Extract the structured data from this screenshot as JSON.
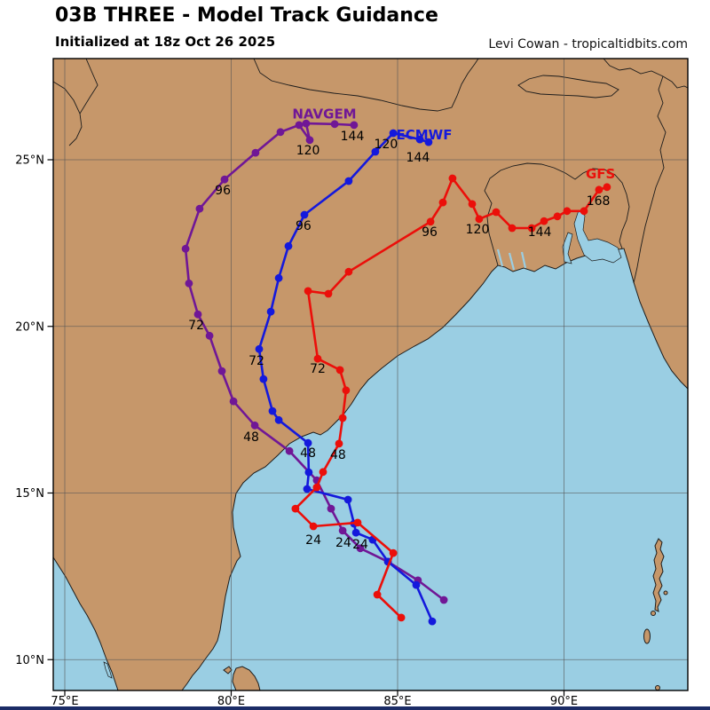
{
  "header": {
    "title": "03B THREE - Model Track Guidance",
    "subtitle": "Initialized at 18z Oct 26 2025",
    "credit": "Levi Cowan - tropicaltidbits.com"
  },
  "colors": {
    "land": "#c6976a",
    "ocean": "#9acee3",
    "coast_stroke": "#1c1c1c",
    "grid": "#555555",
    "navgem": "#701796",
    "ecmwf": "#1419dc",
    "gfs": "#eb0f0a",
    "hour_label": "#000000",
    "bottom_bar": "#1b2c66"
  },
  "chart_data": {
    "type": "line",
    "title": "03B THREE - Model Track Guidance",
    "subtitle": "Initialized at 18z Oct 26 2025",
    "axes": {
      "lon_ticks": [
        75,
        80,
        85,
        90
      ],
      "lat_ticks": [
        10,
        15,
        20,
        25
      ],
      "lon_suffix": "°E",
      "lat_suffix": "°N",
      "lon_range": [
        74.65,
        93.72
      ],
      "lat_range": [
        9.07,
        27.94
      ],
      "grid": true
    },
    "series": [
      {
        "name": "NAVGEM",
        "color": "#701796",
        "label_lon": 82.8,
        "label_lat": 26.37,
        "points": [
          [
            86.39,
            11.79
          ],
          [
            85.61,
            12.38
          ],
          [
            84.71,
            12.94
          ],
          [
            83.88,
            13.34
          ],
          [
            83.35,
            13.87
          ],
          [
            83.0,
            14.53
          ],
          [
            82.57,
            15.38
          ],
          [
            81.75,
            16.26
          ],
          [
            80.71,
            17.03
          ],
          [
            80.07,
            17.75
          ],
          [
            79.72,
            18.66
          ],
          [
            79.35,
            19.72
          ],
          [
            79.0,
            20.36
          ],
          [
            78.73,
            21.29
          ],
          [
            78.63,
            22.33
          ],
          [
            79.05,
            23.53
          ],
          [
            79.8,
            24.41
          ],
          [
            80.73,
            25.21
          ],
          [
            81.48,
            25.83
          ],
          [
            82.04,
            26.04
          ],
          [
            82.36,
            25.59
          ],
          [
            82.25,
            26.09
          ],
          [
            83.11,
            26.07
          ],
          [
            83.69,
            26.04
          ]
        ],
        "hour_labels": [
          {
            "t": "24",
            "lon": 83.37,
            "lat": 13.52
          },
          {
            "t": "48",
            "lon": 80.6,
            "lat": 16.69
          },
          {
            "t": "72",
            "lon": 78.95,
            "lat": 20.05
          },
          {
            "t": "96",
            "lon": 79.75,
            "lat": 24.09
          },
          {
            "t": "120",
            "lon": 82.31,
            "lat": 25.29
          },
          {
            "t": "144",
            "lon": 83.64,
            "lat": 25.72
          }
        ]
      },
      {
        "name": "ECMWF",
        "color": "#1419dc",
        "label_lon": 85.8,
        "label_lat": 25.75,
        "points": [
          [
            86.04,
            11.15
          ],
          [
            85.56,
            12.24
          ],
          [
            84.71,
            12.94
          ],
          [
            84.25,
            13.6
          ],
          [
            83.75,
            13.81
          ],
          [
            83.69,
            14.08
          ],
          [
            83.51,
            14.8
          ],
          [
            82.28,
            15.12
          ],
          [
            82.33,
            15.62
          ],
          [
            82.31,
            16.5
          ],
          [
            81.43,
            17.19
          ],
          [
            81.24,
            17.46
          ],
          [
            80.97,
            18.42
          ],
          [
            80.84,
            19.32
          ],
          [
            81.19,
            20.44
          ],
          [
            81.43,
            21.45
          ],
          [
            81.72,
            22.41
          ],
          [
            82.2,
            23.35
          ],
          [
            83.53,
            24.36
          ],
          [
            84.33,
            25.24
          ],
          [
            84.87,
            25.8
          ],
          [
            85.67,
            25.61
          ],
          [
            85.93,
            25.53
          ]
        ],
        "hour_labels": [
          {
            "t": "24",
            "lon": 83.88,
            "lat": 13.47
          },
          {
            "t": "48",
            "lon": 82.31,
            "lat": 16.21
          },
          {
            "t": "72",
            "lon": 80.76,
            "lat": 18.98
          },
          {
            "t": "96",
            "lon": 82.17,
            "lat": 23.03
          },
          {
            "t": "120",
            "lon": 84.65,
            "lat": 25.48
          },
          {
            "t": "144",
            "lon": 85.61,
            "lat": 25.08
          }
        ]
      },
      {
        "name": "GFS",
        "color": "#eb0f0a",
        "label_lon": 91.1,
        "label_lat": 24.57,
        "points": [
          [
            85.11,
            11.26
          ],
          [
            84.39,
            11.95
          ],
          [
            84.87,
            13.2
          ],
          [
            83.8,
            14.11
          ],
          [
            82.47,
            14.0
          ],
          [
            81.93,
            14.53
          ],
          [
            82.57,
            15.17
          ],
          [
            82.76,
            15.63
          ],
          [
            83.24,
            16.48
          ],
          [
            83.35,
            17.25
          ],
          [
            83.45,
            18.08
          ],
          [
            83.27,
            18.69
          ],
          [
            82.6,
            19.03
          ],
          [
            82.31,
            21.06
          ],
          [
            82.92,
            20.98
          ],
          [
            83.53,
            21.64
          ],
          [
            85.99,
            23.14
          ],
          [
            86.36,
            23.72
          ],
          [
            86.65,
            24.44
          ],
          [
            87.24,
            23.67
          ],
          [
            87.45,
            23.22
          ],
          [
            87.96,
            23.43
          ],
          [
            88.44,
            22.95
          ],
          [
            89.03,
            22.95
          ],
          [
            89.4,
            23.16
          ],
          [
            89.8,
            23.3
          ],
          [
            90.09,
            23.46
          ],
          [
            90.6,
            23.46
          ],
          [
            91.05,
            24.1
          ],
          [
            91.29,
            24.18
          ]
        ],
        "hour_labels": [
          {
            "t": "24",
            "lon": 82.47,
            "lat": 13.6
          },
          {
            "t": "48",
            "lon": 83.21,
            "lat": 16.16
          },
          {
            "t": "72",
            "lon": 82.6,
            "lat": 18.74
          },
          {
            "t": "96",
            "lon": 85.96,
            "lat": 22.84
          },
          {
            "t": "120",
            "lon": 87.4,
            "lat": 22.92
          },
          {
            "t": "144",
            "lon": 89.27,
            "lat": 22.84
          },
          {
            "t": "168",
            "lon": 91.03,
            "lat": 23.78
          }
        ]
      }
    ]
  }
}
